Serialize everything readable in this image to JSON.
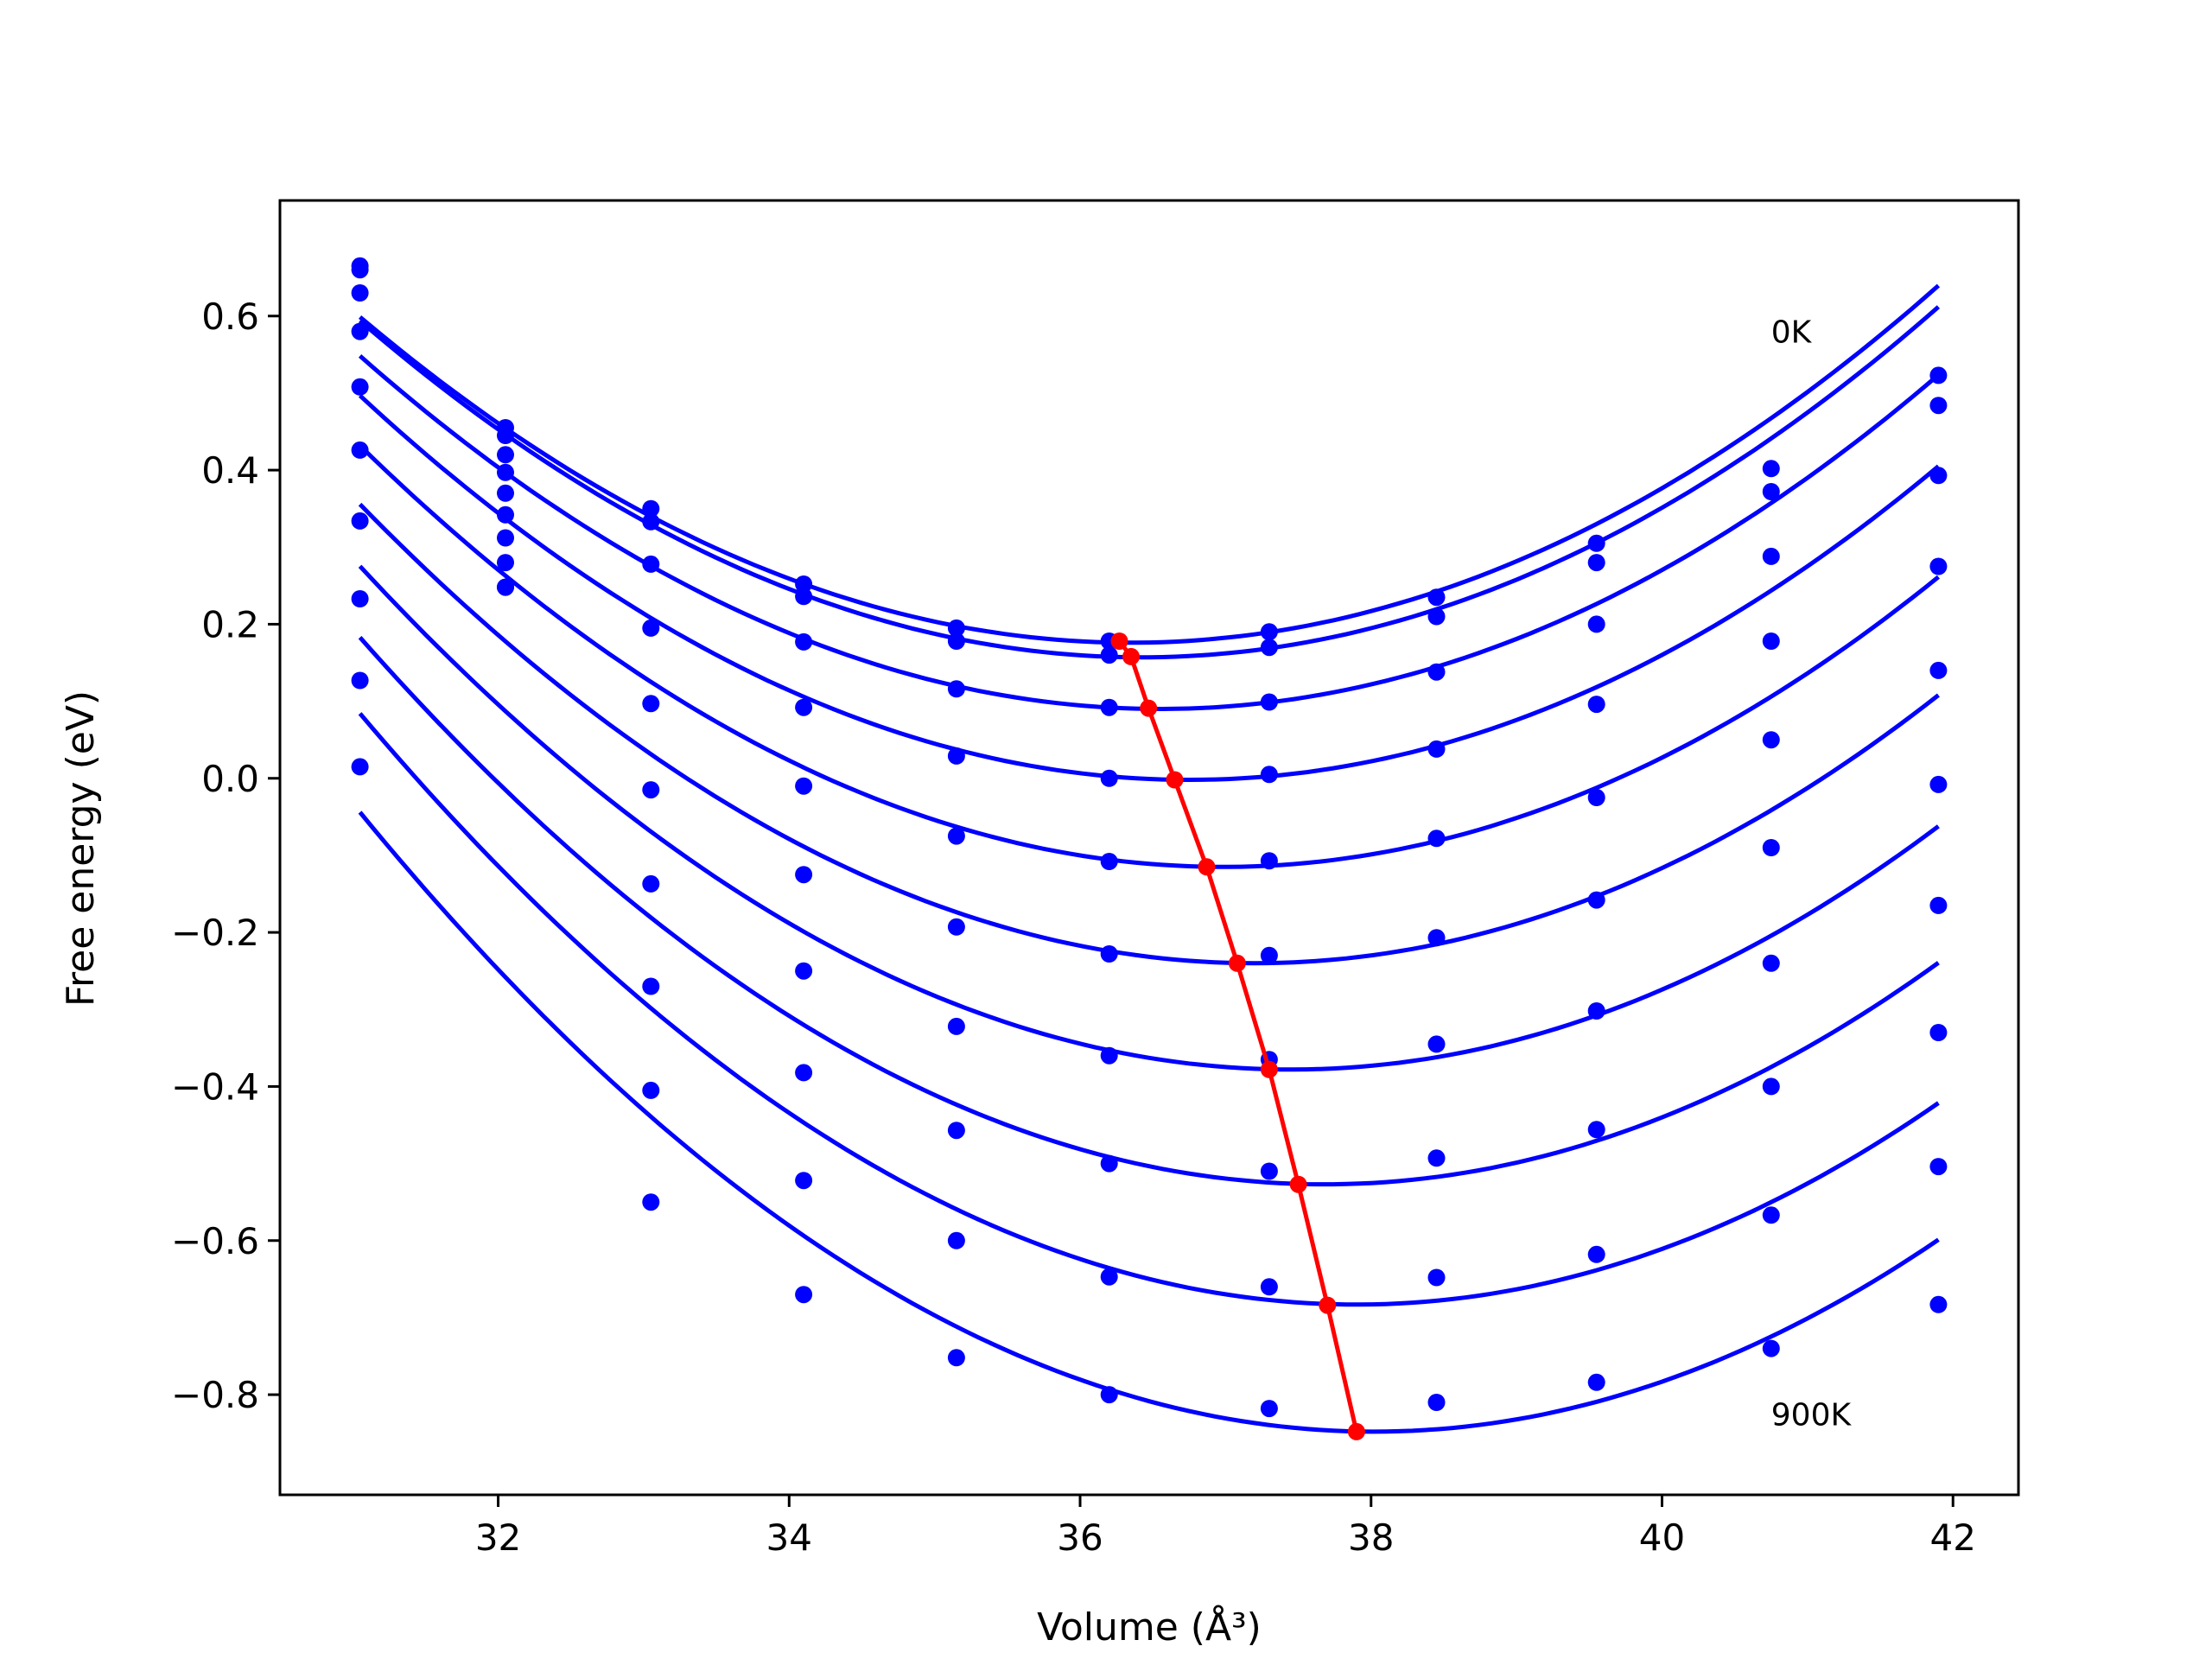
{
  "chart_data": {
    "type": "scatter",
    "title": "",
    "xlabel": "Volume (Å³)",
    "ylabel": "Free energy (eV)",
    "xlim": [
      30.5,
      42.45
    ],
    "ylim": [
      -0.93,
      0.75
    ],
    "xticks": [
      32,
      34,
      36,
      38,
      40,
      42
    ],
    "yticks": [
      0.6,
      0.4,
      0.2,
      0.0,
      -0.2,
      -0.4,
      -0.6,
      -0.8
    ],
    "xtick_labels": [
      "32",
      "34",
      "36",
      "38",
      "40",
      "42"
    ],
    "ytick_labels": [
      "0.6",
      "0.4",
      "0.2",
      "0.0",
      "−0.2",
      "−0.4",
      "−0.6",
      "−0.8"
    ],
    "grid": false,
    "annotations": [
      {
        "text": "0K",
        "x": 40.75,
        "y": 0.58
      },
      {
        "text": "900K",
        "x": 40.75,
        "y": -0.825
      }
    ],
    "colors": {
      "points": "#0000ff",
      "fits": "#0000ff",
      "minima": "#ff0000"
    },
    "volumes": [
      31.05,
      32.05,
      33.05,
      34.1,
      35.15,
      36.2,
      37.3,
      38.45,
      39.55,
      40.75,
      41.9
    ],
    "series": [
      {
        "points": [
          0.665,
          0.455,
          0.35,
          0.252,
          0.195,
          0.178,
          0.19,
          0.235,
          0.305,
          0.402,
          0.523
        ],
        "fit": {
          "a": 0.01505,
          "v0": 36.35,
          "f0": 0.176
        }
      },
      {
        "points": [
          0.66,
          0.445,
          0.333,
          0.236,
          0.178,
          0.16,
          0.17,
          0.21,
          0.28,
          0.372,
          0.484
        ],
        "fit": {
          "a": 0.01515,
          "v0": 36.42,
          "f0": 0.157
        }
      },
      {
        "points": [
          0.63,
          0.42,
          0.278,
          0.177,
          0.116,
          0.092,
          0.099,
          0.138,
          0.2,
          0.288,
          0.393
        ],
        "fit": {
          "a": 0.01515,
          "v0": 36.55,
          "f0": 0.09
        }
      },
      {
        "points": [
          0.58,
          0.397,
          0.195,
          0.092,
          0.029,
          0.0,
          0.005,
          0.038,
          0.096,
          0.178,
          0.275
        ],
        "fit": {
          "a": 0.01535,
          "v0": 36.75,
          "f0": -0.002
        }
      },
      {
        "points": [
          0.508,
          0.37,
          0.097,
          -0.01,
          -0.075,
          -0.108,
          -0.107,
          -0.078,
          -0.025,
          0.05,
          0.14
        ],
        "fit": {
          "a": 0.01555,
          "v0": 36.98,
          "f0": -0.115
        }
      },
      {
        "points": [
          0.426,
          0.342,
          -0.015,
          -0.125,
          -0.193,
          -0.228,
          -0.23,
          -0.207,
          -0.158,
          -0.09,
          -0.008
        ],
        "fit": {
          "a": 0.01575,
          "v0": 37.2,
          "f0": -0.24
        }
      },
      {
        "points": [
          0.334,
          0.312,
          -0.137,
          -0.25,
          -0.322,
          -0.36,
          -0.365,
          -0.345,
          -0.302,
          -0.24,
          -0.165
        ],
        "fit": {
          "a": 0.01595,
          "v0": 37.45,
          "f0": -0.378
        }
      },
      {
        "points": [
          0.233,
          0.28,
          -0.27,
          -0.382,
          -0.457,
          -0.5,
          -0.51,
          -0.493,
          -0.456,
          -0.4,
          -0.33
        ],
        "fit": {
          "a": 0.01615,
          "v0": 37.68,
          "f0": -0.527
        }
      },
      {
        "points": [
          0.127,
          0.248,
          -0.405,
          -0.522,
          -0.6,
          -0.647,
          -0.66,
          -0.648,
          -0.618,
          -0.567,
          -0.504
        ],
        "fit": {
          "a": 0.01635,
          "v0": 37.9,
          "f0": -0.683
        }
      },
      {
        "points": [
          0.015,
          0.248,
          -0.55,
          -0.67,
          -0.752,
          -0.8,
          -0.818,
          -0.81,
          -0.784,
          -0.74,
          -0.683
        ],
        "fit": {
          "a": 0.01655,
          "v0": 38.02,
          "f0": -0.848
        }
      }
    ],
    "minima": [
      {
        "x": 36.27,
        "y": 0.178
      },
      {
        "x": 36.35,
        "y": 0.158
      },
      {
        "x": 36.47,
        "y": 0.091
      },
      {
        "x": 36.65,
        "y": -0.002
      },
      {
        "x": 36.87,
        "y": -0.115
      },
      {
        "x": 37.08,
        "y": -0.24
      },
      {
        "x": 37.3,
        "y": -0.378
      },
      {
        "x": 37.5,
        "y": -0.527
      },
      {
        "x": 37.7,
        "y": -0.684
      },
      {
        "x": 37.9,
        "y": -0.848
      }
    ]
  }
}
